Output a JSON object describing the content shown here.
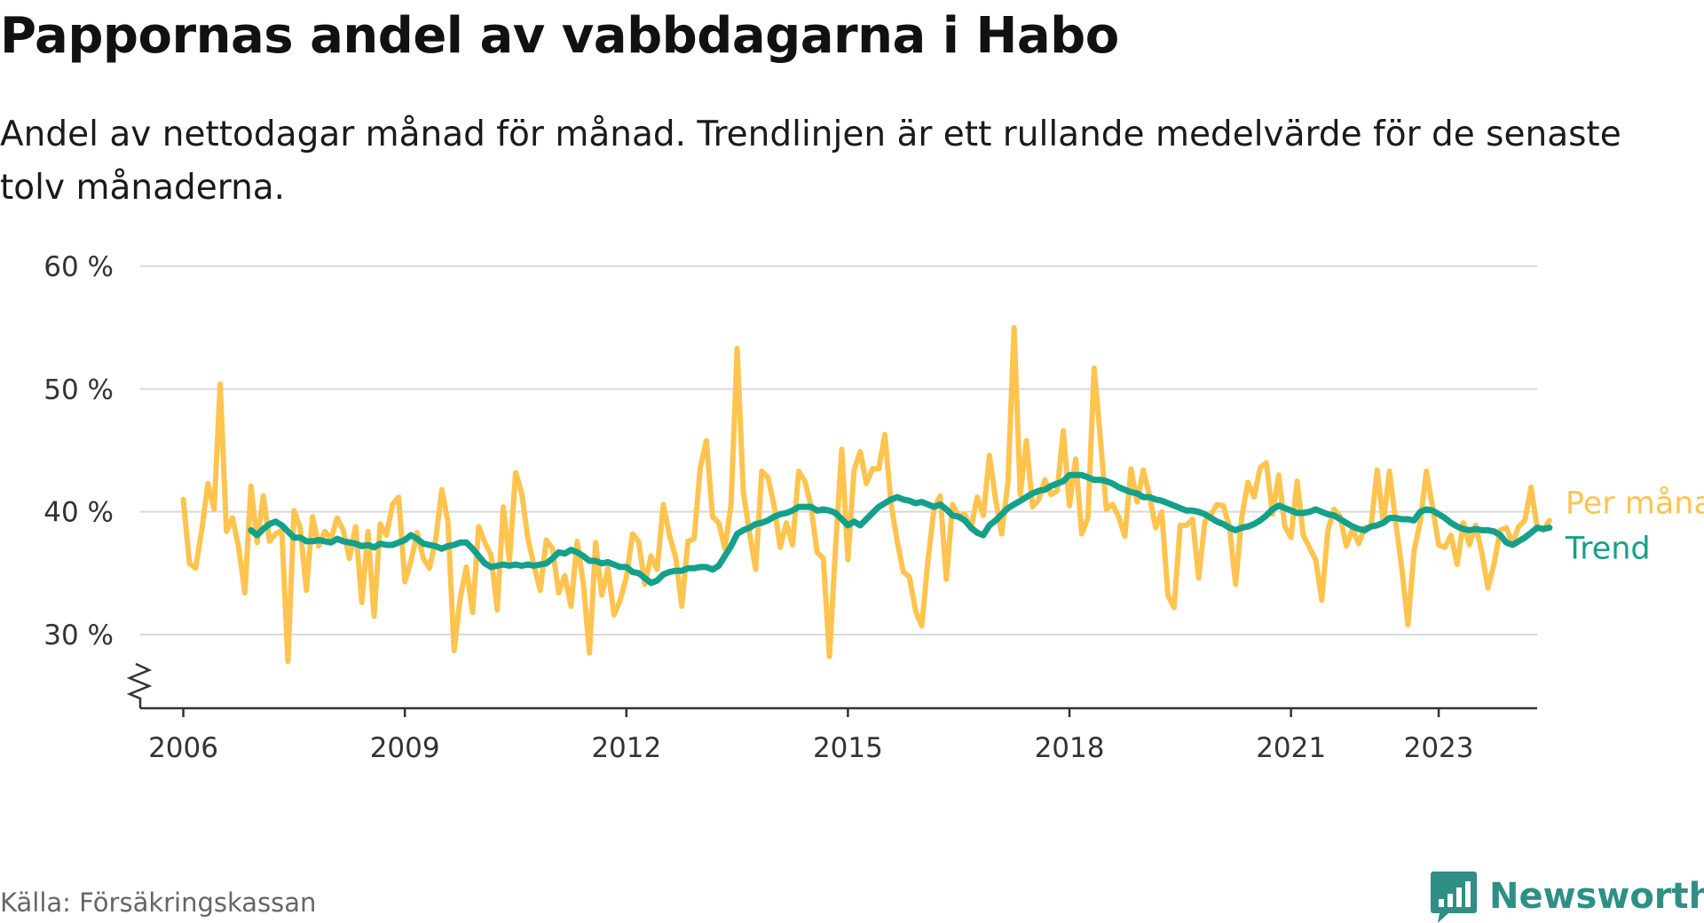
{
  "title": "Pappornas andel av vabbdagarna i Habo",
  "subtitle": "Andel av nettodagar månad för månad. Trendlinjen är ett rullande medelvärde för de senaste tolv månaderna.",
  "source": "Källa: Försäkringskassan",
  "brand": "Newsworthy",
  "colors": {
    "monthly": "#fec44f",
    "trend": "#14a08a",
    "grid": "#d9d9d9",
    "axis": "#333333",
    "brand": "#2f8f85"
  },
  "chart_data": {
    "type": "line",
    "title": "Pappornas andel av vabbdagarna i Habo",
    "xlabel": "",
    "ylabel": "",
    "ylim": [
      24,
      60
    ],
    "y_ticks": [
      30,
      40,
      50,
      60
    ],
    "y_tick_labels": [
      "30 %",
      "40 %",
      "50 %",
      "60 %"
    ],
    "y_axis_break": true,
    "x_range": [
      "2005-06",
      "2024-05"
    ],
    "x_ticks": [
      "2006-01",
      "2009-01",
      "2012-01",
      "2015-01",
      "2018-01",
      "2021-01",
      "2023-01"
    ],
    "x_tick_labels": [
      "2006",
      "2009",
      "2012",
      "2015",
      "2018",
      "2021",
      "2023"
    ],
    "grid": "horizontal",
    "legend": "inline-right",
    "series": [
      {
        "name": "Per månad",
        "color": "#fec44f",
        "x_start": "2006-01",
        "values": [
          41,
          35.8,
          35.4,
          38.5,
          42.3,
          40.2,
          50.4,
          38.4,
          39.5,
          37.1,
          33.4,
          42.1,
          37.5,
          41.3,
          37.6,
          38.2,
          38.5,
          27.8,
          40.1,
          38.7,
          33.6,
          39.6,
          37.2,
          38.4,
          37.8,
          39.5,
          38.5,
          36.2,
          38.8,
          32.6,
          38.4,
          31.5,
          39,
          38.1,
          40.6,
          41.2,
          34.3,
          36,
          38.3,
          36.2,
          35.4,
          37.7,
          41.8,
          39.2,
          28.7,
          33,
          35.5,
          31.8,
          38.8,
          37.5,
          36.5,
          32,
          40.4,
          36,
          43.2,
          41.5,
          37.8,
          35.6,
          33.6,
          37.7,
          37,
          33.4,
          34.8,
          32.3,
          37.6,
          34.2,
          28.5,
          37.5,
          33.2,
          35.4,
          31.6,
          32.8,
          34.7,
          38.2,
          37.6,
          34.1,
          36.4,
          35.3,
          40.6,
          38.1,
          36.3,
          32.3,
          37.6,
          37.8,
          43.6,
          45.8,
          39.6,
          39.1,
          37,
          40.6,
          53.3,
          41.6,
          38.3,
          35.3,
          43.3,
          42.8,
          40.5,
          37.1,
          39.1,
          37.3,
          43.3,
          42.5,
          40.5,
          36.7,
          36.2,
          28.2,
          37.2,
          45.1,
          36.1,
          43.4,
          44.9,
          42.3,
          43.5,
          43.5,
          46.3,
          40.7,
          37.6,
          35.1,
          34.7,
          31.9,
          30.7,
          36,
          40.3,
          41.3,
          34.5,
          40.6,
          39.6,
          39.8,
          38.6,
          41.2,
          39.7,
          44.6,
          41,
          38.2,
          42.4,
          55,
          41.4,
          45.8,
          40.4,
          41,
          42.6,
          41.4,
          41.7,
          46.6,
          40.5,
          44.3,
          38.2,
          39.5,
          51.7,
          46.1,
          40.2,
          40.6,
          39.6,
          38,
          43.5,
          40.8,
          43.4,
          41.3,
          38.7,
          40,
          33.2,
          32.2,
          38.9,
          38.9,
          39.4,
          34.6,
          39.2,
          39.8,
          40.6,
          40.5,
          38.8,
          34.1,
          39.6,
          42.4,
          41.2,
          43.6,
          44,
          39.8,
          43,
          38.8,
          37.9,
          42.5,
          38.1,
          37.1,
          36.1,
          32.8,
          38.5,
          40.2,
          39.6,
          37.2,
          38.6,
          37.4,
          38.7,
          38.8,
          43.4,
          39.1,
          43.3,
          39.2,
          35.4,
          30.8,
          36.8,
          39.2,
          43.3,
          40.4,
          37.3,
          37.1,
          38.1,
          35.7,
          39.1,
          37.3,
          38.9,
          36.7,
          33.8,
          35.8,
          38.5,
          38.7,
          37.4,
          38.8,
          39.3,
          42,
          38.7,
          38.5,
          39.3
        ]
      },
      {
        "name": "Trend",
        "color": "#14a08a",
        "x_start": "2006-12",
        "values": [
          38.5,
          38.1,
          38.6,
          39,
          39.2,
          38.9,
          38.4,
          37.9,
          37.9,
          37.6,
          37.6,
          37.7,
          37.6,
          37.5,
          37.8,
          37.6,
          37.5,
          37.4,
          37.2,
          37.3,
          37.1,
          37.4,
          37.3,
          37.3,
          37.5,
          37.7,
          38.1,
          37.8,
          37.4,
          37.3,
          37.2,
          37,
          37.2,
          37.3,
          37.5,
          37.5,
          37,
          36.4,
          35.8,
          35.5,
          35.6,
          35.7,
          35.6,
          35.7,
          35.6,
          35.7,
          35.6,
          35.7,
          35.8,
          36.2,
          36.7,
          36.6,
          36.9,
          36.7,
          36.4,
          36,
          36,
          35.8,
          35.9,
          35.7,
          35.5,
          35.5,
          35.1,
          35,
          34.6,
          34.2,
          34.4,
          34.9,
          35.1,
          35.2,
          35.2,
          35.4,
          35.4,
          35.5,
          35.5,
          35.3,
          35.6,
          36.4,
          37.2,
          38.2,
          38.5,
          38.7,
          39,
          39.1,
          39.3,
          39.6,
          39.8,
          39.9,
          40.1,
          40.4,
          40.4,
          40.4,
          40.1,
          40.2,
          40.1,
          39.9,
          39.4,
          38.9,
          39.2,
          38.9,
          39.4,
          39.9,
          40.4,
          40.7,
          41,
          41.2,
          41,
          40.9,
          40.7,
          40.8,
          40.6,
          40.4,
          40.6,
          40.2,
          39.7,
          39.6,
          39.3,
          38.7,
          38.3,
          38.1,
          38.9,
          39.3,
          39.8,
          40.3,
          40.6,
          40.9,
          41.2,
          41.5,
          41.7,
          41.8,
          42.1,
          42.3,
          42.5,
          43,
          43,
          43,
          42.8,
          42.6,
          42.6,
          42.5,
          42.3,
          42,
          41.8,
          41.6,
          41.5,
          41.2,
          41.2,
          41,
          40.9,
          40.7,
          40.5,
          40.3,
          40.1,
          40.1,
          40,
          39.8,
          39.5,
          39.2,
          39,
          38.7,
          38.5,
          38.7,
          38.8,
          39,
          39.3,
          39.7,
          40.2,
          40.5,
          40.3,
          40.1,
          39.9,
          39.9,
          40,
          40.2,
          40,
          39.8,
          39.7,
          39.4,
          39.1,
          38.8,
          38.6,
          38.5,
          38.8,
          38.9,
          39.1,
          39.5,
          39.5,
          39.4,
          39.4,
          39.3,
          40,
          40.2,
          40.1,
          39.8,
          39.5,
          39.1,
          38.8,
          38.6,
          38.5,
          38.6,
          38.5,
          38.5,
          38.4,
          38.1,
          37.5,
          37.3,
          37.6,
          37.9,
          38.3,
          38.7,
          38.6,
          38.7
        ]
      }
    ]
  }
}
